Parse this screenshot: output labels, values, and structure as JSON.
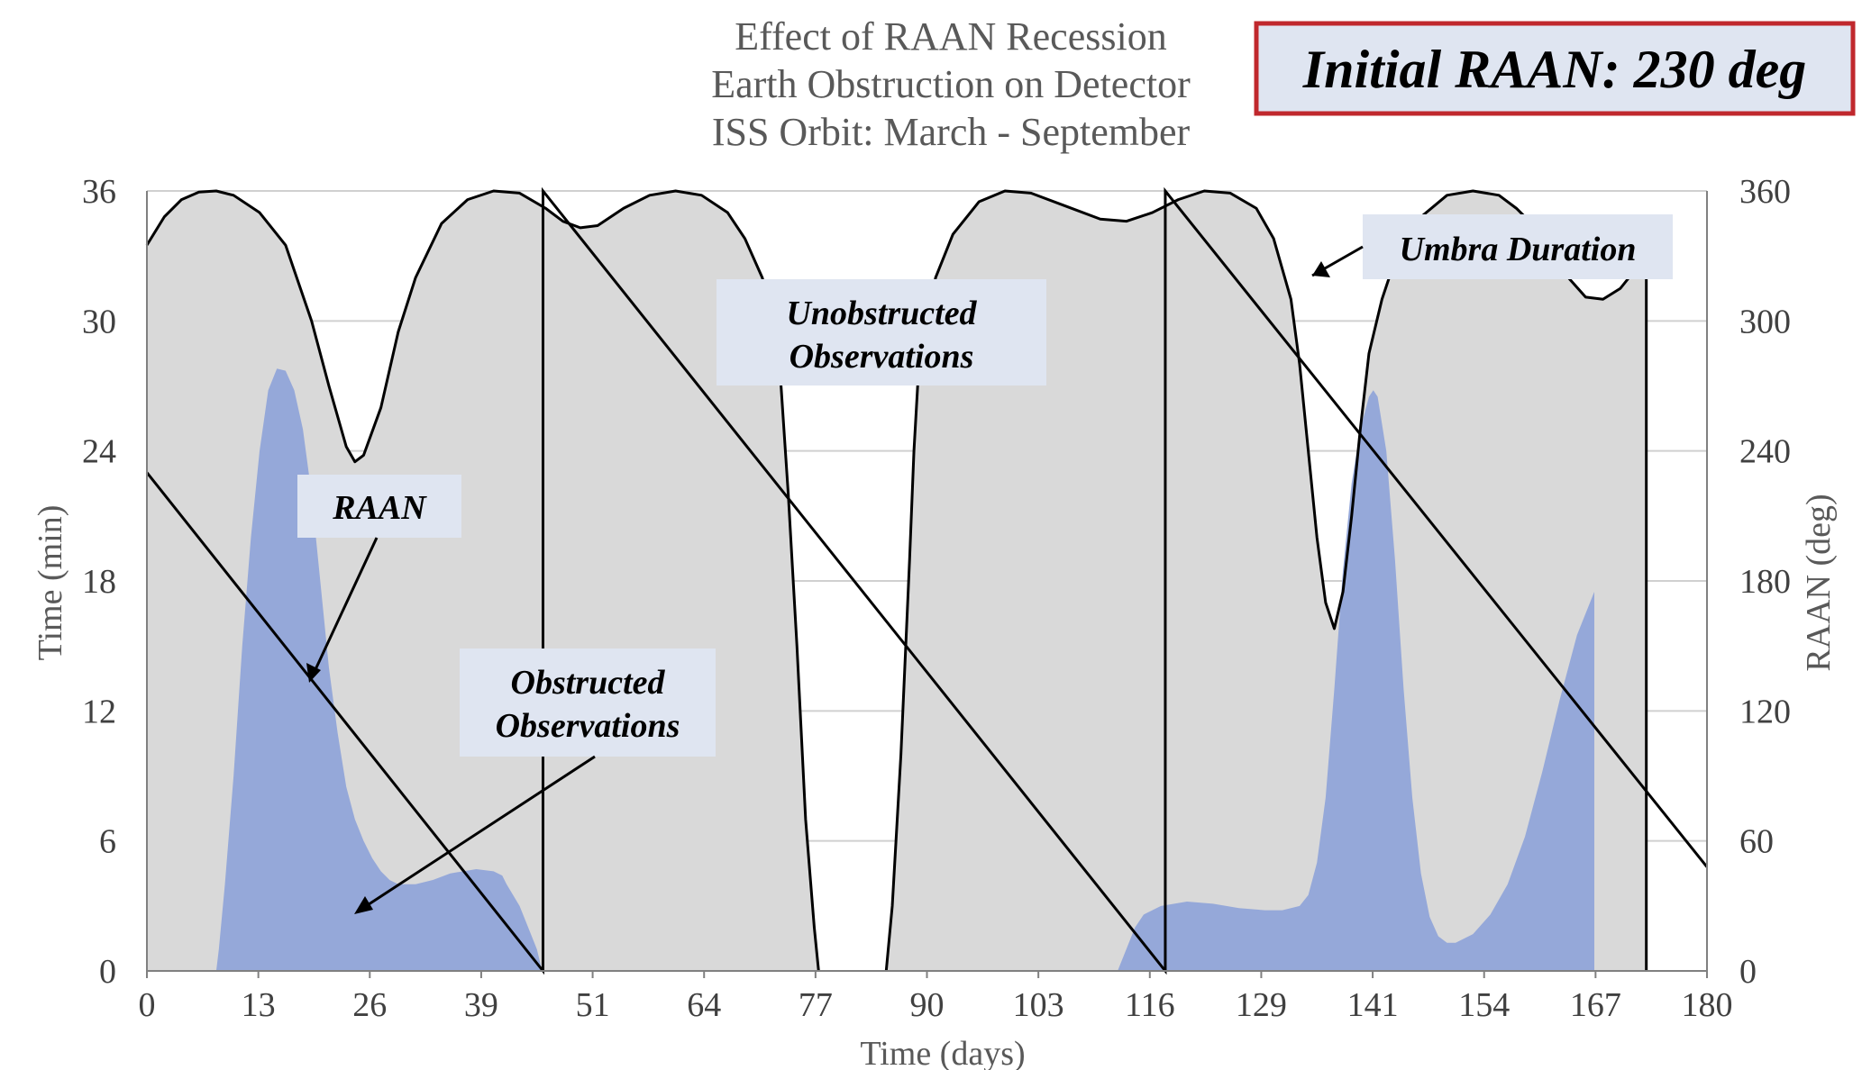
{
  "chart_data": {
    "type": "area",
    "title": [
      "Effect of RAAN Recession",
      "Earth Obstruction on Detector",
      "ISS Orbit: March - September"
    ],
    "badge": "Initial RAAN: 230 deg",
    "xlabel": "Time (days)",
    "ylabel_left": "Time (min)",
    "ylabel_right": "RAAN (deg)",
    "xlim": [
      0,
      180
    ],
    "ylim_left": [
      0,
      36
    ],
    "ylim_right": [
      0,
      360
    ],
    "xticks": [
      "0",
      "13",
      "26",
      "39",
      "51",
      "64",
      "77",
      "90",
      "103",
      "116",
      "129",
      "141",
      "154",
      "167",
      "180"
    ],
    "yticks_left": [
      "0",
      "6",
      "12",
      "18",
      "24",
      "30",
      "36"
    ],
    "yticks_right": [
      "0",
      "60",
      "120",
      "180",
      "240",
      "300",
      "360"
    ],
    "grid": true,
    "series": [
      {
        "name": "Umbra Duration",
        "axis": "left",
        "style": "grey-fill-black-outline",
        "color": "#d9d9d9",
        "segments": [
          [
            [
              0,
              33.5
            ],
            [
              2,
              34.8
            ],
            [
              4,
              35.6
            ],
            [
              6,
              35.95
            ],
            [
              8,
              36
            ],
            [
              10,
              35.8
            ],
            [
              13,
              35
            ],
            [
              16,
              33.5
            ],
            [
              19,
              30
            ],
            [
              21,
              27
            ],
            [
              23,
              24.2
            ],
            [
              24,
              23.5
            ],
            [
              25,
              23.8
            ],
            [
              27,
              26
            ],
            [
              29,
              29.5
            ],
            [
              31,
              32
            ],
            [
              34,
              34.5
            ],
            [
              37,
              35.6
            ],
            [
              40,
              36
            ],
            [
              43,
              35.9
            ],
            [
              46,
              35.2
            ],
            [
              48,
              34.6
            ],
            [
              50,
              34.3
            ],
            [
              52,
              34.4
            ],
            [
              55,
              35.2
            ],
            [
              58,
              35.8
            ],
            [
              61,
              36
            ],
            [
              64,
              35.8
            ],
            [
              67,
              35
            ],
            [
              69,
              33.8
            ],
            [
              71,
              32
            ],
            [
              72,
              30.5
            ],
            [
              73,
              28
            ],
            [
              74,
              22
            ],
            [
              75,
              15
            ],
            [
              76,
              7
            ],
            [
              77,
              2
            ],
            [
              77.5,
              0
            ]
          ],
          [
            [
              85.3,
              0
            ],
            [
              86,
              3
            ],
            [
              87,
              10
            ],
            [
              88,
              19
            ],
            [
              88.5,
              24
            ],
            [
              89,
              27.5
            ],
            [
              90,
              30
            ],
            [
              91,
              32
            ],
            [
              93,
              34
            ],
            [
              96,
              35.5
            ],
            [
              99,
              36
            ],
            [
              102,
              35.9
            ],
            [
              106,
              35.3
            ],
            [
              110,
              34.7
            ],
            [
              113,
              34.6
            ],
            [
              116,
              35
            ],
            [
              119,
              35.6
            ],
            [
              122,
              36
            ],
            [
              125,
              35.9
            ],
            [
              128,
              35.2
            ],
            [
              130,
              33.8
            ],
            [
              132,
              31
            ],
            [
              133,
              28
            ],
            [
              134,
              24
            ],
            [
              135,
              20
            ],
            [
              136,
              17
            ],
            [
              137,
              15.8
            ],
            [
              138,
              17.5
            ],
            [
              139,
              21
            ],
            [
              140,
              25
            ],
            [
              141,
              28.5
            ],
            [
              142.5,
              31
            ],
            [
              144,
              32.8
            ],
            [
              147,
              34.8
            ],
            [
              150,
              35.8
            ],
            [
              153,
              36
            ],
            [
              156,
              35.8
            ],
            [
              158,
              35.2
            ],
            [
              160,
              34.4
            ],
            [
              162,
              33.3
            ],
            [
              164,
              32
            ],
            [
              166,
              31.1
            ],
            [
              168,
              31
            ],
            [
              170,
              31.5
            ],
            [
              172,
              32.5
            ],
            [
              173,
              33.4
            ]
          ]
        ]
      },
      {
        "name": "Obstructed Observations",
        "axis": "left",
        "style": "blue-area",
        "color": "#95a8d9",
        "segments": [
          [
            [
              8,
              0
            ],
            [
              8.3,
              1
            ],
            [
              9,
              4
            ],
            [
              10,
              9
            ],
            [
              11,
              15
            ],
            [
              12,
              20
            ],
            [
              13,
              24
            ],
            [
              14,
              26.8
            ],
            [
              15,
              27.8
            ],
            [
              16,
              27.7
            ],
            [
              17,
              26.8
            ],
            [
              18,
              25
            ],
            [
              19,
              22
            ],
            [
              20,
              18
            ],
            [
              21,
              14
            ],
            [
              22,
              11
            ],
            [
              23,
              8.5
            ],
            [
              24,
              7
            ],
            [
              25,
              6
            ],
            [
              26,
              5.2
            ],
            [
              27,
              4.6
            ],
            [
              28,
              4.2
            ],
            [
              29,
              4
            ],
            [
              31,
              4
            ],
            [
              33,
              4.2
            ],
            [
              35,
              4.5
            ],
            [
              38,
              4.7
            ],
            [
              40,
              4.6
            ],
            [
              41,
              4.4
            ],
            [
              41.5,
              4
            ],
            [
              43,
              3
            ],
            [
              44,
              2
            ],
            [
              45,
              1
            ],
            [
              45.6,
              0
            ]
          ],
          [
            [
              112,
              0
            ],
            [
              113,
              1
            ],
            [
              114,
              2
            ],
            [
              115,
              2.6
            ],
            [
              117,
              3
            ],
            [
              120,
              3.2
            ],
            [
              123,
              3.1
            ],
            [
              126,
              2.9
            ],
            [
              129,
              2.8
            ],
            [
              131,
              2.8
            ],
            [
              133,
              3
            ],
            [
              134,
              3.5
            ],
            [
              135,
              5
            ],
            [
              136,
              8
            ],
            [
              137,
              13
            ],
            [
              138,
              18.5
            ],
            [
              139,
              22.5
            ],
            [
              140,
              25
            ],
            [
              141,
              26.5
            ],
            [
              141.5,
              26.8
            ],
            [
              142,
              26.5
            ],
            [
              143,
              24
            ],
            [
              144,
              19
            ],
            [
              145,
              13
            ],
            [
              146,
              8
            ],
            [
              147,
              4.5
            ],
            [
              148,
              2.5
            ],
            [
              149,
              1.6
            ],
            [
              150,
              1.3
            ],
            [
              151,
              1.3
            ],
            [
              153,
              1.7
            ],
            [
              155,
              2.6
            ],
            [
              157,
              4
            ],
            [
              159,
              6.2
            ],
            [
              161,
              9.2
            ],
            [
              163,
              12.5
            ],
            [
              165,
              15.5
            ],
            [
              167,
              17.5
            ]
          ]
        ]
      },
      {
        "name": "RAAN",
        "axis": "right",
        "style": "black-line",
        "color": "#000000",
        "points": [
          [
            0,
            230
          ],
          [
            45.7,
            0
          ],
          [
            45.7,
            360
          ],
          [
            117.5,
            0
          ],
          [
            117.5,
            360
          ],
          [
            180,
            48
          ]
        ]
      }
    ],
    "annotations": [
      {
        "text": "Umbra Duration",
        "box_color": "#dfe5f1"
      },
      {
        "text": "Unobstructed Observations",
        "lines": [
          "Unobstructed",
          "Observations"
        ],
        "box_color": "#dfe5f1"
      },
      {
        "text": "RAAN",
        "box_color": "#dfe5f1"
      },
      {
        "text": "Obstructed Observations",
        "lines": [
          "Obstructed",
          "Observations"
        ],
        "box_color": "#dfe5f1"
      }
    ]
  }
}
